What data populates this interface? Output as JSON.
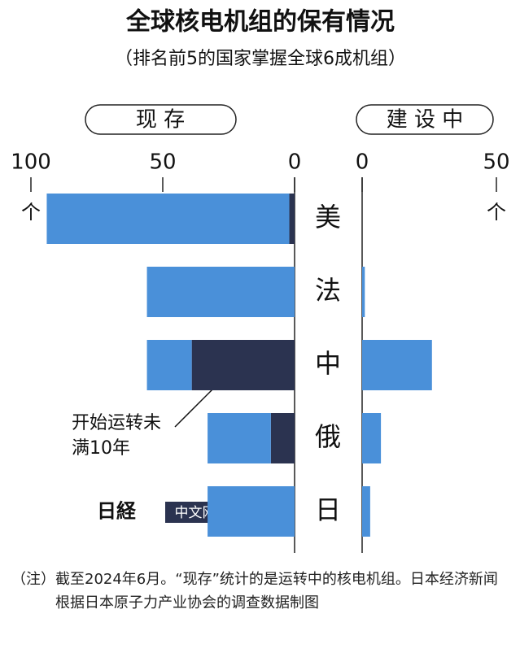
{
  "chart_data": {
    "type": "butterfly",
    "title": "全球核电机组的保有情况",
    "subtitle": "（排名前5的国家掌握全球6成机组）",
    "categories": [
      "美",
      "法",
      "中",
      "俄",
      "日"
    ],
    "left": {
      "label": "现 存",
      "xlim": [
        100,
        0
      ],
      "xticks": [
        100,
        50,
        0
      ],
      "unit": "个",
      "series": [
        {
          "name": "开始运转未满10年",
          "color": "#2b3350",
          "values": [
            2,
            0,
            39,
            9,
            0
          ]
        },
        {
          "color": "#4a90d9",
          "values": [
            92,
            56,
            17,
            24,
            33
          ]
        }
      ]
    },
    "right": {
      "label": "建 设 中",
      "xlim": [
        0,
        50
      ],
      "xticks": [
        0,
        50
      ],
      "unit": "个",
      "series": [
        {
          "color": "#4a90d9",
          "values": [
            0,
            1,
            26,
            7,
            3
          ]
        }
      ]
    },
    "watermark": {
      "logo": "日経",
      "text": "中文网"
    },
    "note_prefix": "（注）",
    "note": "截至2024年6月。“现存”统计的是运转中的核电机组。日本经济新闻根据日本原子力产业协会的调查数据制图"
  }
}
